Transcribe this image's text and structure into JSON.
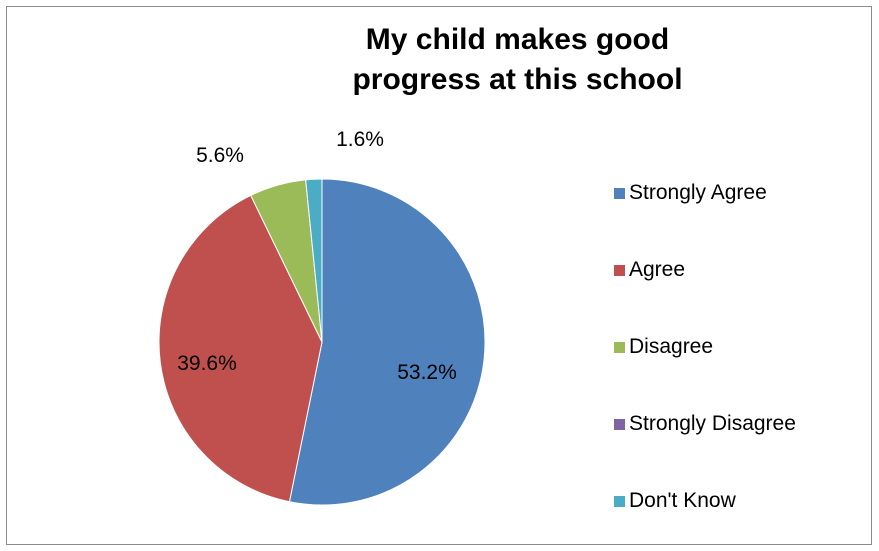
{
  "chart_data": {
    "type": "pie",
    "title": [
      "My child makes good",
      "progress at this school"
    ],
    "start_angle_deg": 0,
    "direction": "clockwise",
    "legend_position": "right",
    "slices": [
      {
        "label": "Strongly Agree",
        "value": 53.2,
        "data_label": "53.2%",
        "color": "#4F81BD"
      },
      {
        "label": "Agree",
        "value": 39.6,
        "data_label": "39.6%",
        "color": "#C0504D"
      },
      {
        "label": "Disagree",
        "value": 5.6,
        "data_label": "5.6%",
        "color": "#9BBB59"
      },
      {
        "label": "Strongly Disagree",
        "value": 0,
        "data_label": "",
        "color": "#8064A2"
      },
      {
        "label": "Don't Know",
        "value": 1.6,
        "data_label": "1.6%",
        "color": "#4BACC6"
      }
    ]
  }
}
